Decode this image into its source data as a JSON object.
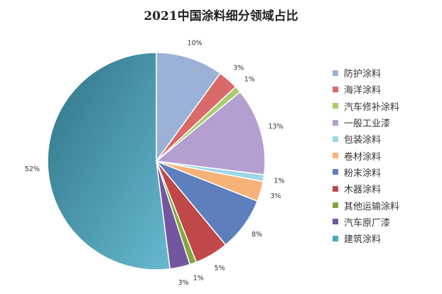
{
  "chart_data": {
    "type": "pie",
    "title": "2021中国涂料细分领域占比",
    "legend_position": "right",
    "series": [
      {
        "name": "防护涂料",
        "value": 10,
        "label": "10%",
        "color": "#9bb1d8"
      },
      {
        "name": "海洋涂料",
        "value": 3,
        "label": "3%",
        "color": "#d86a6a"
      },
      {
        "name": "汽车修补涂料",
        "value": 1,
        "label": "1%",
        "color": "#a8cd6a"
      },
      {
        "name": "一般工业漆",
        "value": 13,
        "label": "13%",
        "color": "#b59fd0"
      },
      {
        "name": "包装涂料",
        "value": 1,
        "label": "1%",
        "color": "#9dd6e8"
      },
      {
        "name": "卷材涂料",
        "value": 3,
        "label": "3%",
        "color": "#f7b27a"
      },
      {
        "name": "粉末涂料",
        "value": 8,
        "label": "8%",
        "color": "#5d7fbe"
      },
      {
        "name": "木器涂料",
        "value": 5,
        "label": "5%",
        "color": "#c04848"
      },
      {
        "name": "其他运输涂料",
        "value": 1,
        "label": "1%",
        "color": "#82a83c"
      },
      {
        "name": "汽车原厂漆",
        "value": 3,
        "label": "3%",
        "color": "#7456a0"
      },
      {
        "name": "建筑涂料",
        "value": 52,
        "label": "52%",
        "color": "#4aa8c2"
      }
    ]
  }
}
